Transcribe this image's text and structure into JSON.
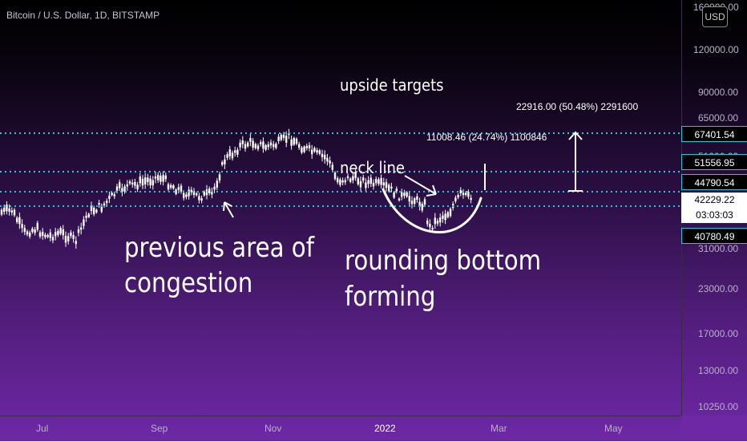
{
  "chart": {
    "symbol_title": "Bitcoin / U.S. Dollar, 1D, BITSTAMP",
    "currency_button": "USD",
    "price_axis": [
      "160000.00",
      "120000.00",
      "90000.00",
      "65000.00",
      "51000.00",
      "31000.00",
      "23000.00",
      "17000.00",
      "13000.00",
      "10250.00"
    ],
    "time_axis": [
      "Jul",
      "Sep",
      "Nov",
      "2022",
      "Mar",
      "May"
    ],
    "price_tags": {
      "level_1": "67401.54",
      "level_2": "51556.95",
      "level_3": "44790.54",
      "current_price": "42229.22",
      "countdown": "03:03:03",
      "level_4": "40780.49"
    },
    "colors": {
      "dotted_line": "#26c6da",
      "candle": "#ffffff",
      "background_top": "#000000",
      "background_bottom": "#6e28a6"
    }
  },
  "annotations": {
    "upside_targets": "upside targets",
    "measure_long": "22916.00 (50.48%) 2291600",
    "measure_short": "11008.46 (24.74%) 1100846",
    "neck_line": "neck line",
    "previous_area_line1": "previous area of",
    "previous_area_line2": "congestion",
    "rounding_line1": "rounding bottom",
    "rounding_line2": "forming"
  }
}
